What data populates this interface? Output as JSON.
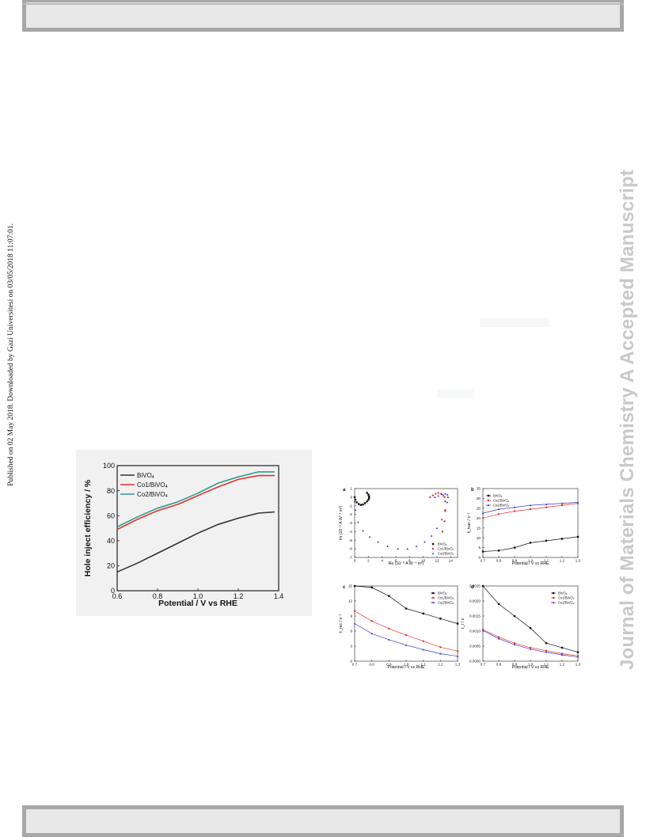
{
  "header_bar": {},
  "sidebar_left": {
    "text": "Published on 02 May 2018. Downloaded by Gazi Universitesi on 03/05/2018 11:07:01."
  },
  "sidebar_right": {
    "text": "Journal of Materials Chemistry A Accepted Manuscript"
  },
  "figure1": {
    "chart_data": {
      "type": "line",
      "title": "",
      "xlabel": "Potential / V vs RHE",
      "ylabel": "Hole inject efficiency / %",
      "xlim": [
        0.6,
        1.4
      ],
      "ylim": [
        0,
        100
      ],
      "xticks": [
        "0.6",
        "0.8",
        "1.0",
        "1.2",
        "1.4"
      ],
      "yticks": [
        "0",
        "20",
        "40",
        "60",
        "80",
        "100"
      ],
      "legend_placement": "top-left",
      "series": [
        {
          "name": "BiVO4",
          "color": "#333333",
          "x": [
            0.6,
            0.7,
            0.8,
            0.9,
            1.0,
            1.1,
            1.2,
            1.3,
            1.38
          ],
          "y": [
            15,
            22,
            30,
            38,
            46,
            53,
            58,
            62,
            63
          ]
        },
        {
          "name": "Co1/BiVO4",
          "color": "#e8312f",
          "x": [
            0.6,
            0.7,
            0.8,
            0.9,
            1.0,
            1.1,
            1.2,
            1.3,
            1.38
          ],
          "y": [
            49,
            57,
            64,
            69,
            76,
            83,
            89,
            92,
            92
          ]
        },
        {
          "name": "Co2/BiVO4",
          "color": "#2a9d8f",
          "x": [
            0.6,
            0.7,
            0.8,
            0.9,
            1.0,
            1.1,
            1.2,
            1.3,
            1.38
          ],
          "y": [
            51,
            59,
            66,
            71,
            78,
            86,
            91,
            95,
            95
          ]
        }
      ]
    }
  },
  "figure2": {
    "panels": [
      {
        "label": "a",
        "chart_data": {
          "type": "scatter",
          "xlabel": "Re (10⁻⁶ A W⁻¹ m²)",
          "ylabel": "Im (10⁻⁶ A W⁻¹ m²)",
          "xlim": [
            0,
            15
          ],
          "ylim": [
            -7,
            1
          ],
          "xticks": [
            "0",
            "2",
            "4",
            "6",
            "8",
            "10",
            "12",
            "14"
          ],
          "yticks": [
            "1",
            "0",
            "-1",
            "-2",
            "-3",
            "-4",
            "-5",
            "-6",
            "-7"
          ],
          "legend_placement": "bottom-right",
          "series": [
            {
              "name": "BiVO4",
              "color": "#111111",
              "marker": "square",
              "x": [
                0,
                0.1,
                0.3,
                0.6,
                0.9,
                1.2,
                1.5,
                1.8,
                2.0,
                2.1,
                2.1,
                2.0,
                1.8
              ],
              "y": [
                0,
                -0.3,
                -0.6,
                -0.8,
                -0.9,
                -0.85,
                -0.7,
                -0.5,
                -0.3,
                -0.1,
                0.1,
                0.3,
                0.5
              ]
            },
            {
              "name": "Co1/BiVO4",
              "color": "#e8312f",
              "marker": "circle",
              "x": [
                11.0,
                11.4,
                11.8,
                12.2,
                12.6,
                12.9,
                13.1,
                13.2,
                13.2,
                13.1,
                12.8
              ],
              "y": [
                0,
                0.2,
                0.4,
                0.5,
                0.4,
                0.2,
                0,
                -0.5,
                -1.5,
                -2.8,
                -4.0
              ]
            },
            {
              "name": "Co2/BiVO4",
              "color": "#3a3acd",
              "marker": "triangle",
              "x": [
                0,
                0.1,
                0.5,
                1.2,
                2.2,
                3.4,
                4.8,
                6.3,
                7.7,
                9.0,
                10.2,
                11.2,
                12.0,
                12.7,
                13.2,
                13.5,
                13.6,
                13.5,
                13.2,
                12.7,
                12.2,
                11.7
              ],
              "y": [
                -0.5,
                -1.5,
                -2.9,
                -3.9,
                -4.6,
                -5.2,
                -5.7,
                -6.0,
                -6.0,
                -5.7,
                -5.2,
                -4.5,
                -3.6,
                -2.6,
                -1.6,
                -0.6,
                0,
                0.3,
                0.4,
                0.35,
                0.15,
                0
              ]
            }
          ]
        }
      },
      {
        "label": "b",
        "chart_data": {
          "type": "line",
          "xlabel": "Potential / V vs RHE",
          "ylabel": "k_tran / s⁻¹",
          "xlim": [
            0.7,
            1.3
          ],
          "ylim": [
            0,
            35
          ],
          "xticks": [
            "0.7",
            "0.8",
            "0.9",
            "1.0",
            "1.1",
            "1.2",
            "1.3"
          ],
          "yticks": [
            "0",
            "5",
            "10",
            "15",
            "20",
            "25",
            "30",
            "35"
          ],
          "legend_placement": "top-left",
          "x": [
            0.7,
            0.8,
            0.9,
            1.0,
            1.1,
            1.2,
            1.3
          ],
          "series": [
            {
              "name": "BiVO4",
              "color": "#111111",
              "marker": "square",
              "values": [
                3,
                3.5,
                5,
                7.5,
                8.5,
                9.5,
                10.5
              ]
            },
            {
              "name": "Co1/BiVO4",
              "color": "#e8312f",
              "marker": "circle",
              "values": [
                20,
                22,
                23.5,
                24.5,
                25.5,
                26.5,
                27.5
              ]
            },
            {
              "name": "Co2/BiVO4",
              "color": "#3a3acd",
              "marker": "triangle",
              "values": [
                22.5,
                24.5,
                25.5,
                26.5,
                27,
                27.5,
                28
              ]
            }
          ]
        }
      },
      {
        "label": "c",
        "chart_data": {
          "type": "line",
          "xlabel": "Potential / V vs RHE",
          "ylabel": "k_rec / s⁻¹",
          "xlim": [
            0.7,
            1.3
          ],
          "ylim": [
            0,
            15
          ],
          "xticks": [
            "0.7",
            "0.8",
            "0.9",
            "1.0",
            "1.1",
            "1.2",
            "1.3"
          ],
          "yticks": [
            "0",
            "3",
            "6",
            "9",
            "12",
            "15"
          ],
          "legend_placement": "top-right",
          "x": [
            0.7,
            0.8,
            0.9,
            1.0,
            1.1,
            1.2,
            1.3
          ],
          "series": [
            {
              "name": "BiVO4",
              "color": "#111111",
              "marker": "square",
              "values": [
                15,
                14.7,
                13,
                10.5,
                9.5,
                8.5,
                7.5
              ]
            },
            {
              "name": "Co1/BiVO4",
              "color": "#e8312f",
              "marker": "circle",
              "values": [
                10,
                8,
                6.5,
                5.2,
                4,
                2.8,
                2
              ]
            },
            {
              "name": "Co2/BiVO4",
              "color": "#3a3acd",
              "marker": "triangle",
              "values": [
                7.5,
                5.5,
                4.3,
                3.2,
                2.3,
                1.5,
                1
              ]
            }
          ]
        }
      },
      {
        "label": "d",
        "chart_data": {
          "type": "line",
          "xlabel": "Potential / V vs RHE",
          "ylabel": "τ_r / s",
          "xlim": [
            0.7,
            1.3
          ],
          "ylim": [
            0,
            0.0025
          ],
          "xticks": [
            "0.7",
            "0.8",
            "0.9",
            "1.0",
            "1.1",
            "1.2",
            "1.3"
          ],
          "yticks": [
            "0.0000",
            "0.0005",
            "0.0010",
            "0.0015",
            "0.0020",
            "0.0025"
          ],
          "legend_placement": "top-right",
          "x": [
            0.7,
            0.8,
            0.9,
            1.0,
            1.1,
            1.2,
            1.3
          ],
          "series": [
            {
              "name": "BiVO4",
              "color": "#111111",
              "marker": "square",
              "values": [
                0.0025,
                0.0019,
                0.0015,
                0.0011,
                0.0006,
                0.00045,
                0.0003
              ]
            },
            {
              "name": "Co1/BiVO4",
              "color": "#e8312f",
              "marker": "circle",
              "values": [
                0.00105,
                0.0008,
                0.0006,
                0.00045,
                0.00035,
                0.00025,
                0.00018
              ]
            },
            {
              "name": "Co2/BiVO4",
              "color": "#3a3acd",
              "marker": "triangle",
              "values": [
                0.00102,
                0.00075,
                0.00055,
                0.0004,
                0.0003,
                0.00021,
                0.00014
              ]
            }
          ]
        }
      }
    ]
  }
}
